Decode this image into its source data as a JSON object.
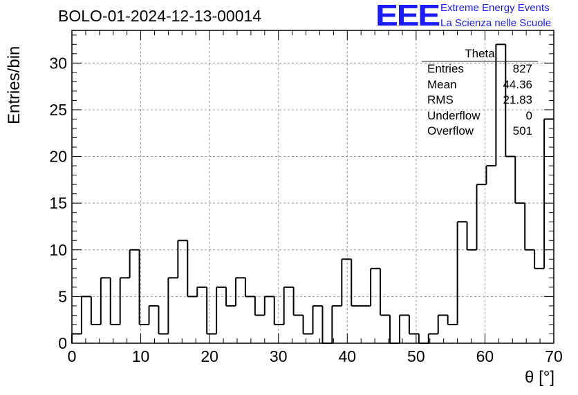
{
  "page_title": "BOLO-01-2024-12-13-00014",
  "logo": {
    "mark": "EEE",
    "line1": "Extreme Energy Events",
    "line2": "La Scienza nelle Scuole",
    "color": "#1a1aff"
  },
  "stats": {
    "title": "Theta",
    "rows": [
      {
        "key": "Entries",
        "value": "827"
      },
      {
        "key": "Mean",
        "value": "44.36"
      },
      {
        "key": "RMS",
        "value": "21.83"
      },
      {
        "key": "Underflow",
        "value": "0"
      },
      {
        "key": "Overflow",
        "value": "501"
      }
    ]
  },
  "chart_data": {
    "type": "bar",
    "style": "step-histogram",
    "xlabel": "θ [°]",
    "ylabel": "Entries/bin",
    "xlim": [
      0,
      70
    ],
    "ylim": [
      0,
      33.5
    ],
    "bin_width": 1.4,
    "x_ticks": [
      0,
      10,
      20,
      30,
      40,
      50,
      60,
      70
    ],
    "y_ticks": [
      0,
      5,
      10,
      15,
      20,
      25,
      30
    ],
    "grid": true,
    "values": [
      1,
      5,
      2,
      7,
      2,
      7,
      10,
      2,
      4,
      1,
      7,
      11,
      5,
      6,
      1,
      6,
      4,
      7,
      5,
      3,
      5,
      2,
      6,
      3,
      1,
      4,
      0,
      4,
      9,
      4,
      4,
      8,
      3,
      0,
      3,
      1,
      0,
      1,
      3,
      2,
      13,
      10,
      17,
      19,
      32,
      20,
      15,
      10,
      8,
      24
    ]
  }
}
